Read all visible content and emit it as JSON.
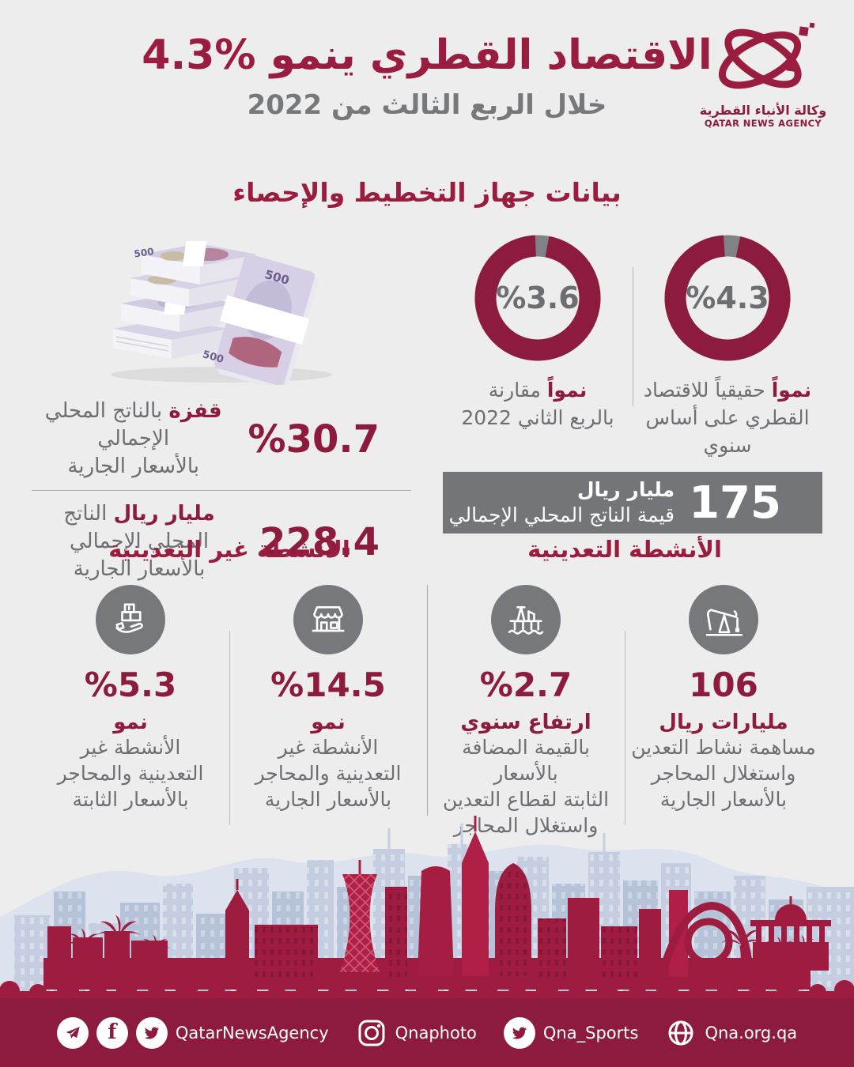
{
  "colors": {
    "maroon": "#8d1b3d",
    "maroon_bright": "#a81e44",
    "gray_text": "#6d6e71",
    "gray_mid": "#77787b",
    "background": "#ededee",
    "donut_gap_gray": "#808285"
  },
  "header": {
    "title": "الاقتصاد القطري ينمو %4.3",
    "subtitle": "خلال الربع الثالث من 2022",
    "logo": {
      "ar": "وكالة الأنباء القطرية",
      "en": "QATAR NEWS AGENCY"
    }
  },
  "section_title": "بيانات جهاز التخطيط والإحصاء",
  "gdp_stats": [
    {
      "number": "%30.7",
      "bold": "قفزة",
      "rest": "بالناتج المحلي الإجمالي",
      "line2": "بالأسعار الجارية"
    },
    {
      "number": "228.4",
      "bold": "مليار ريال",
      "rest": "الناتج المحلي الإجمالي",
      "line2": "بالأسعار الجارية"
    }
  ],
  "chart_data": [
    {
      "type": "pie",
      "style": "donut",
      "center_label": "%4.3",
      "labels": [
        "growth",
        "remainder"
      ],
      "values": [
        4.3,
        95.7
      ],
      "colors": [
        "#808285",
        "#8d1b3d"
      ],
      "caption_bold": "نمواً",
      "caption_rest": "حقيقياً للاقتصاد",
      "caption_line2": "القطري على أساس سنوي",
      "title": "نمواً حقيقياً للاقتصاد القطري على أساس سنوي"
    },
    {
      "type": "pie",
      "style": "donut",
      "center_label": "%3.6",
      "labels": [
        "growth",
        "remainder"
      ],
      "values": [
        3.6,
        96.4
      ],
      "colors": [
        "#808285",
        "#8d1b3d"
      ],
      "caption_bold": "نمواً",
      "caption_rest": "مقارنة",
      "caption_line2": "بالربع الثاني 2022",
      "title": "نمواً مقارنة بالربع الثاني 2022"
    }
  ],
  "banner": {
    "number": "175",
    "line1": "مليار ريال",
    "line2": "قيمة الناتج المحلي الإجمالي"
  },
  "sections": [
    {
      "title": "الأنشطة التعدينية",
      "items": [
        {
          "icon": "pumpjack-icon",
          "number": "106",
          "label": "مليارات ريال",
          "lines": [
            "مساهمة نشاط التعدين",
            "واستغلال المحاجر",
            "بالأسعار الجارية"
          ]
        },
        {
          "icon": "oil-platform-icon",
          "number": "%2.7",
          "label": "ارتفاع سنوي",
          "lines": [
            "بالقيمة المضافة بالأسعار",
            "الثابتة لقطاع التعدين",
            "واستغلال المحاجر"
          ]
        }
      ]
    },
    {
      "title": "الأنشطة غير التعدينية",
      "items": [
        {
          "icon": "storefront-icon",
          "number": "%14.5",
          "label": "نمو",
          "lines": [
            "الأنشطة غير",
            "التعدينية والمحاجر",
            "بالأسعار الجارية"
          ]
        },
        {
          "icon": "goods-hand-icon",
          "number": "%5.3",
          "label": "نمو",
          "lines": [
            "الأنشطة غير",
            "التعدينية والمحاجر",
            "بالأسعار الثابتة"
          ]
        }
      ]
    }
  ],
  "footer": {
    "groups": [
      {
        "icons": [
          "telegram",
          "facebook",
          "twitter"
        ],
        "label": "QatarNewsAgency"
      },
      {
        "icons": [
          "instagram"
        ],
        "label": "Qnaphoto"
      },
      {
        "icons": [
          "twitter"
        ],
        "label": "Qna_Sports"
      },
      {
        "icons": [
          "globe"
        ],
        "label": "Qna.org.qa"
      }
    ]
  }
}
